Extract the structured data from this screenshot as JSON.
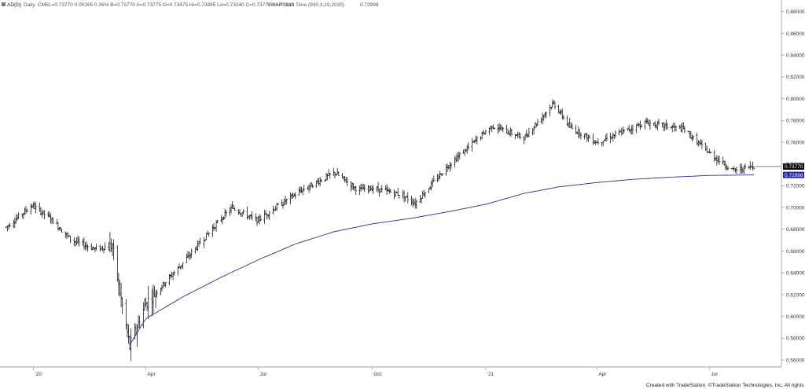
{
  "header": {
    "symbol": "AD(D)",
    "interval": "Daily",
    "exchange": "CME",
    "quote": "L=0.73770  0.00265  0.36%  B=0.73770  A=0.73775  O=0.73475  Hi=0.73995  Lo=0.73240  C=0.73770  V=70,835",
    "indicator": "VWAP Start Time (930,3,19,2020)",
    "indicator_value": "0.72998"
  },
  "footer": {
    "credit": "Created with TradeStation. ©TradeStation Technologies, Inc. All rights reserved."
  },
  "colors": {
    "bars": "#1a1a1a",
    "vwap": "#2b2b9a",
    "last_tag_bg": "#000000",
    "vwap_tag_bg": "#1f1fb4",
    "axis": "#888888"
  },
  "chart_data": {
    "type": "ohlc",
    "title": "",
    "ylim": [
      0.555,
      0.882
    ],
    "y_ticks": [
      "0.88000",
      "0.86000",
      "0.84000",
      "0.82000",
      "0.80000",
      "0.78000",
      "0.76000",
      "0.74000",
      "0.72000",
      "0.70000",
      "0.68000",
      "0.66000",
      "0.64000",
      "0.62000",
      "0.60000",
      "0.58000",
      "0.56000"
    ],
    "x_ticks": [
      "'20",
      "Apr",
      "Jul",
      "Oct",
      "'21",
      "Apr",
      "Jul"
    ],
    "last_price_label": "0.73770",
    "vwap_label": "0.72998",
    "price_path": [
      [
        "2019-12-10",
        0.682
      ],
      [
        "2019-12-31",
        0.702
      ],
      [
        "2020-01-15",
        0.69
      ],
      [
        "2020-02-01",
        0.67
      ],
      [
        "2020-02-20",
        0.662
      ],
      [
        "2020-03-05",
        0.665
      ],
      [
        "2020-03-10",
        0.628
      ],
      [
        "2020-03-19",
        0.572
      ],
      [
        "2020-04-01",
        0.612
      ],
      [
        "2020-04-30",
        0.648
      ],
      [
        "2020-06-01",
        0.69
      ],
      [
        "2020-06-10",
        0.7
      ],
      [
        "2020-06-30",
        0.688
      ],
      [
        "2020-07-15",
        0.7
      ],
      [
        "2020-08-05",
        0.716
      ],
      [
        "2020-09-01",
        0.732
      ],
      [
        "2020-09-20",
        0.716
      ],
      [
        "2020-10-01",
        0.718
      ],
      [
        "2020-10-25",
        0.712
      ],
      [
        "2020-11-05",
        0.704
      ],
      [
        "2020-12-01",
        0.738
      ],
      [
        "2021-01-06",
        0.775
      ],
      [
        "2021-02-01",
        0.764
      ],
      [
        "2021-02-25",
        0.796
      ],
      [
        "2021-03-10",
        0.774
      ],
      [
        "2021-04-01",
        0.76
      ],
      [
        "2021-05-10",
        0.778
      ],
      [
        "2021-06-10",
        0.772
      ],
      [
        "2021-07-01",
        0.75
      ],
      [
        "2021-07-20",
        0.734
      ],
      [
        "2021-08-06",
        0.738
      ]
    ],
    "vwap_path": [
      [
        "2020-03-19",
        0.574
      ],
      [
        "2020-04-01",
        0.598
      ],
      [
        "2020-05-01",
        0.618
      ],
      [
        "2020-06-01",
        0.636
      ],
      [
        "2020-07-01",
        0.652
      ],
      [
        "2020-08-01",
        0.667
      ],
      [
        "2020-09-01",
        0.678
      ],
      [
        "2020-10-01",
        0.685
      ],
      [
        "2020-11-01",
        0.69
      ],
      [
        "2020-12-01",
        0.696
      ],
      [
        "2021-01-01",
        0.703
      ],
      [
        "2021-02-01",
        0.713
      ],
      [
        "2021-03-01",
        0.719
      ],
      [
        "2021-04-01",
        0.723
      ],
      [
        "2021-05-01",
        0.726
      ],
      [
        "2021-06-01",
        0.728
      ],
      [
        "2021-07-01",
        0.7295
      ],
      [
        "2021-08-06",
        0.72998
      ]
    ]
  }
}
